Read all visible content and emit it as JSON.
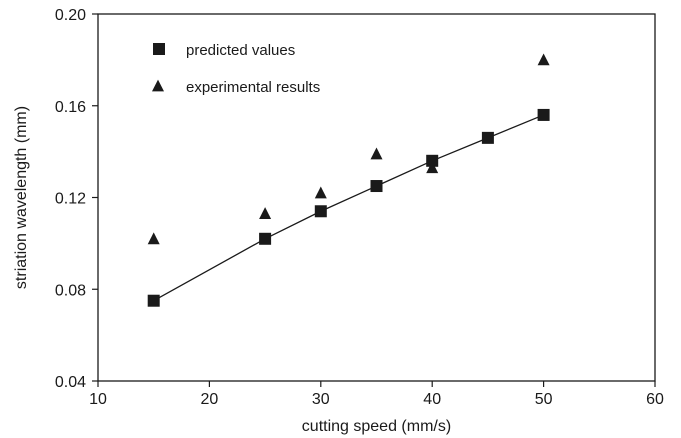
{
  "chart_data": {
    "type": "scatter",
    "xlabel": "cutting speed (mm/s)",
    "ylabel": "striation wavelength (mm)",
    "xlim": [
      10,
      60
    ],
    "ylim": [
      0.04,
      0.2
    ],
    "xticks": [
      10,
      20,
      30,
      40,
      50,
      60
    ],
    "yticks": [
      0.04,
      0.08,
      0.12,
      0.16,
      0.2
    ],
    "xtick_labels": [
      "10",
      "20",
      "30",
      "40",
      "50",
      "60"
    ],
    "ytick_labels": [
      "0.04",
      "0.08",
      "0.12",
      "0.16",
      "0.20"
    ],
    "grid": false,
    "legend_position": "top-left",
    "series": [
      {
        "name": "predicted values",
        "marker": "square",
        "line": true,
        "color": "#1a1a1a",
        "points": [
          {
            "x": 15,
            "y": 0.075
          },
          {
            "x": 25,
            "y": 0.102
          },
          {
            "x": 30,
            "y": 0.114
          },
          {
            "x": 35,
            "y": 0.125
          },
          {
            "x": 40,
            "y": 0.136
          },
          {
            "x": 45,
            "y": 0.146
          },
          {
            "x": 50,
            "y": 0.156
          }
        ]
      },
      {
        "name": "experimental results",
        "marker": "triangle",
        "line": false,
        "color": "#1a1a1a",
        "points": [
          {
            "x": 15,
            "y": 0.102
          },
          {
            "x": 25,
            "y": 0.113
          },
          {
            "x": 30,
            "y": 0.122
          },
          {
            "x": 35,
            "y": 0.139
          },
          {
            "x": 40,
            "y": 0.133
          },
          {
            "x": 50,
            "y": 0.18
          }
        ]
      }
    ]
  }
}
